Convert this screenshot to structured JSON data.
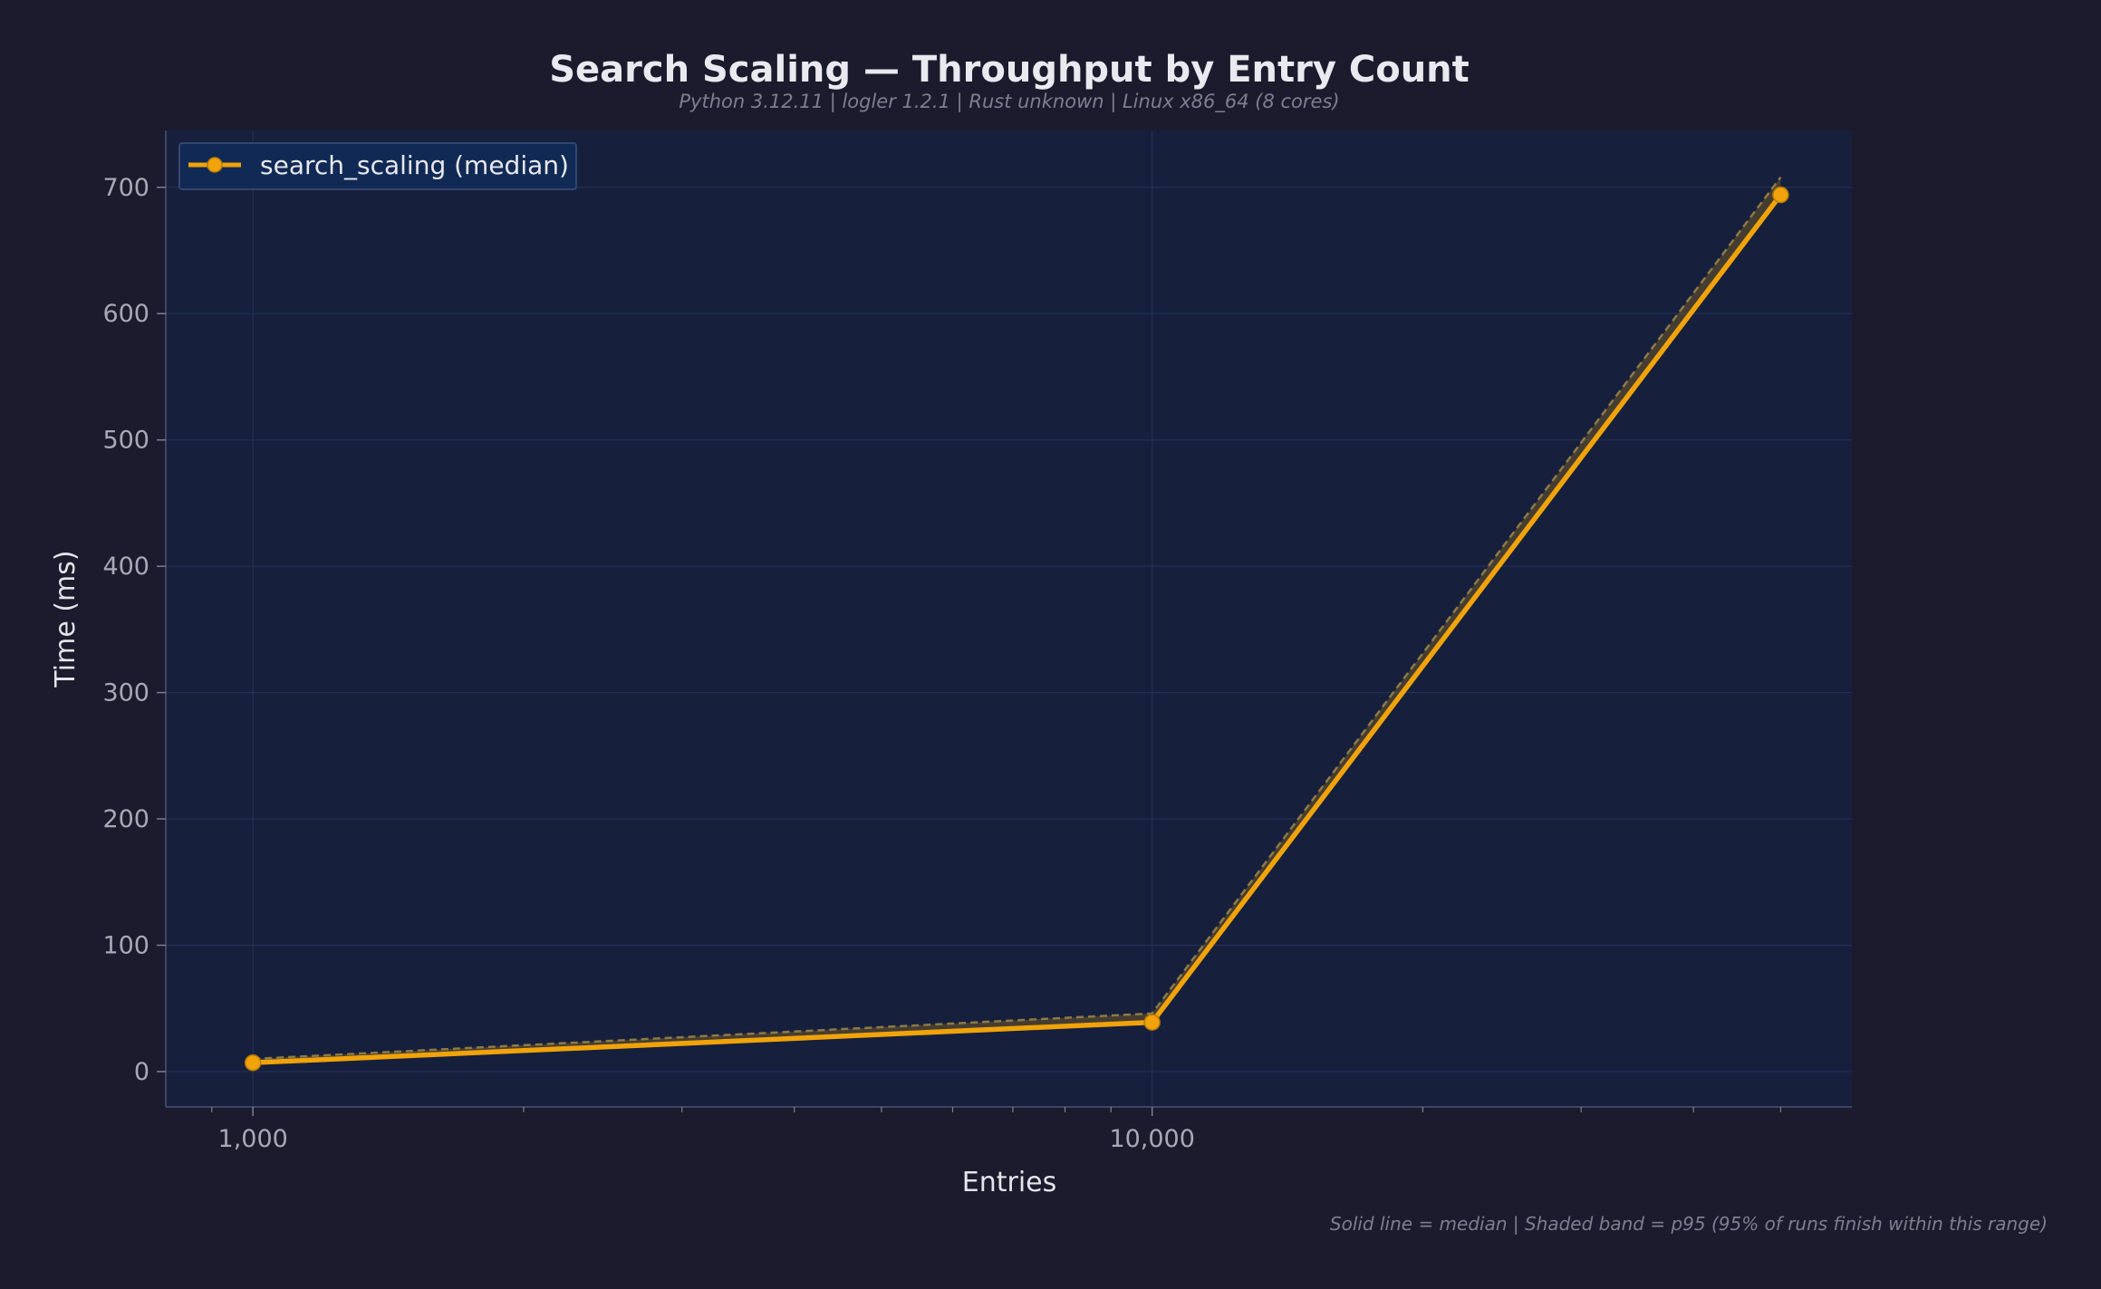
{
  "page": {
    "title": "Search Scaling — Throughput by Entry Count",
    "subtitle": "Python 3.12.11 | logler 1.2.1 | Rust unknown | Linux x86_64 (8 cores)",
    "footnote": "Solid line = median  |  Shaded band = p95 (95% of runs finish within this range)"
  },
  "colors": {
    "page_bg": "#1b1b2d",
    "plot_bg": "#16203d",
    "grid": "#243152",
    "series": "#f0a30a",
    "band_line": "#8d7a45",
    "legend_bg": "#112a55"
  },
  "chart_data": {
    "type": "line",
    "title": "Search Scaling — Throughput by Entry Count",
    "subtitle": "Python 3.12.11 | logler 1.2.1 | Rust unknown | Linux x86_64 (8 cores)",
    "xlabel": "Entries",
    "ylabel": "Time (ms)",
    "x_scale": "log",
    "xlim": [
      800,
      60000
    ],
    "ylim": [
      -28,
      745
    ],
    "x_ticks": [
      1000,
      10000
    ],
    "x_tick_labels": [
      "1,000",
      "10,000"
    ],
    "y_ticks": [
      0,
      100,
      200,
      300,
      400,
      500,
      600,
      700
    ],
    "y_tick_labels": [
      "0",
      "100",
      "200",
      "300",
      "400",
      "500",
      "600",
      "700"
    ],
    "grid": true,
    "legend": {
      "position": "top-left",
      "entries": [
        "search_scaling (median)"
      ]
    },
    "series": [
      {
        "name": "search_scaling (median)",
        "x": [
          1000,
          10000,
          50000
        ],
        "y": [
          7,
          39,
          694
        ],
        "p95": [
          10,
          46,
          708
        ]
      }
    ]
  }
}
